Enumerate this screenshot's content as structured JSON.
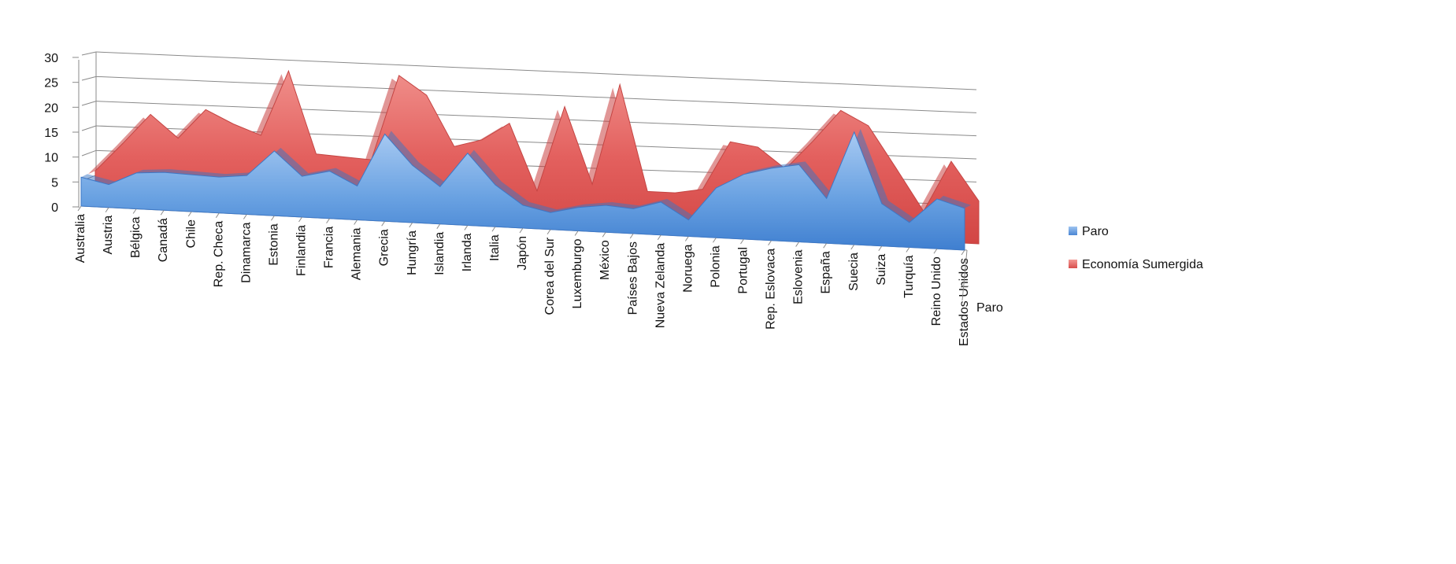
{
  "chart_data": {
    "type": "area",
    "categories": [
      "Australia",
      "Austria",
      "Bélgica",
      "Canadá",
      "Chile",
      "Rep. Checa",
      "Dinamarca",
      "Estonia",
      "Finlandia",
      "Francia",
      "Alemania",
      "Grecia",
      "Hungría",
      "Islandia",
      "Irlanda",
      "Italia",
      "Japón",
      "Corea del Sur",
      "Luxemburgo",
      "México",
      "Países Bajos",
      "Nueva Zelanda",
      "Noruega",
      "Polonia",
      "Portugal",
      "Rep. Eslovaca",
      "Eslovenia",
      "España",
      "Suecia",
      "Suiza",
      "Turquía",
      "Reino Unido",
      "Estados Unidos"
    ],
    "series": [
      {
        "name": "Paro",
        "color": "#5b96dc",
        "values": [
          5.8,
          4.6,
          7.2,
          7.6,
          7.4,
          7.2,
          7.8,
          13.0,
          8.2,
          9.5,
          6.8,
          17.5,
          11.5,
          7.5,
          14.5,
          8.4,
          4.6,
          3.4,
          4.7,
          5.4,
          5.0,
          6.6,
          3.3,
          10.0,
          13.0,
          14.5,
          15.5,
          9.0,
          22.6,
          8.5,
          5.0,
          10.0,
          8.4
        ]
      },
      {
        "name": "Economía Sumergida",
        "color": "#e0585a",
        "values": [
          0,
          7.0,
          10.5,
          5.6,
          11.8,
          9.4,
          6.8,
          14.8,
          3.2,
          1.6,
          4.0,
          10.5,
          12.8,
          6.8,
          1.4,
          11.1,
          1.6,
          20.0,
          3.4,
          23.0,
          2.2,
          0.6,
          4.9,
          8.0,
          4.2,
          -1.4,
          3.5,
          16.4,
          0,
          5.9,
          1.0,
          6.3,
          0.2
        ]
      }
    ],
    "y_axis": {
      "min": 0,
      "max": 30,
      "ticks": [
        "0",
        "5",
        "10",
        "15",
        "20",
        "25",
        "30"
      ]
    },
    "depth_axis_label": "Paro",
    "legend_position": "right",
    "gridlines": true
  }
}
